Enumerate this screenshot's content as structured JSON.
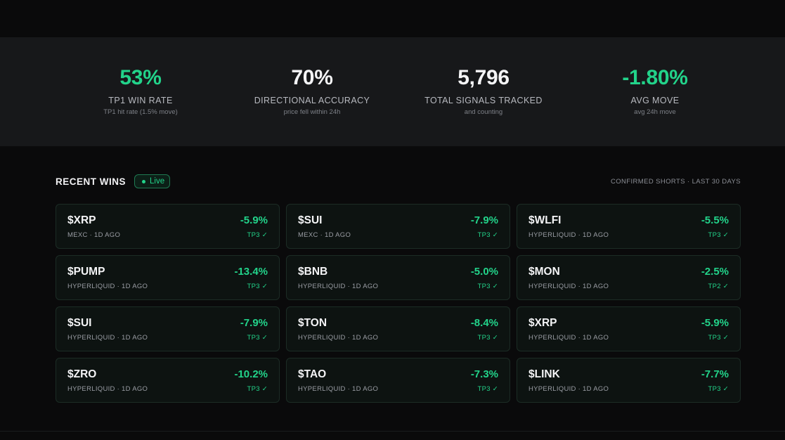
{
  "stats": [
    {
      "value": "53%",
      "label": "TP1 WIN RATE",
      "sub": "TP1 hit rate (1.5% move)",
      "color": "#22d38a"
    },
    {
      "value": "70%",
      "label": "DIRECTIONAL ACCURACY",
      "sub": "price fell within 24h",
      "color": "#f4f4f6"
    },
    {
      "value": "5,796",
      "label": "TOTAL SIGNALS TRACKED",
      "sub": "and counting",
      "color": "#f4f4f6"
    },
    {
      "value": "-1.80%",
      "label": "AVG MOVE",
      "sub": "avg 24h move",
      "color": "#22d38a"
    }
  ],
  "recent_wins": {
    "title": "RECENT WINS",
    "badge": "Live",
    "meta": "CONFIRMED SHORTS · LAST 30 DAYS",
    "cards": [
      {
        "symbol": "$XRP",
        "exchange": "MEXC · 1D AGO",
        "move": "-5.9%",
        "tp": "TP3 ✓"
      },
      {
        "symbol": "$SUI",
        "exchange": "MEXC · 1D AGO",
        "move": "-7.9%",
        "tp": "TP3 ✓"
      },
      {
        "symbol": "$WLFI",
        "exchange": "HYPERLIQUID · 1D AGO",
        "move": "-5.5%",
        "tp": "TP3 ✓"
      },
      {
        "symbol": "$PUMP",
        "exchange": "HYPERLIQUID · 1D AGO",
        "move": "-13.4%",
        "tp": "TP3 ✓"
      },
      {
        "symbol": "$BNB",
        "exchange": "HYPERLIQUID · 1D AGO",
        "move": "-5.0%",
        "tp": "TP3 ✓"
      },
      {
        "symbol": "$MON",
        "exchange": "HYPERLIQUID · 1D AGO",
        "move": "-2.5%",
        "tp": "TP2 ✓"
      },
      {
        "symbol": "$SUI",
        "exchange": "HYPERLIQUID · 1D AGO",
        "move": "-7.9%",
        "tp": "TP3 ✓"
      },
      {
        "symbol": "$TON",
        "exchange": "HYPERLIQUID · 1D AGO",
        "move": "-8.4%",
        "tp": "TP3 ✓"
      },
      {
        "symbol": "$XRP",
        "exchange": "HYPERLIQUID · 1D AGO",
        "move": "-5.9%",
        "tp": "TP3 ✓"
      },
      {
        "symbol": "$ZRO",
        "exchange": "HYPERLIQUID · 1D AGO",
        "move": "-10.2%",
        "tp": "TP3 ✓"
      },
      {
        "symbol": "$TAO",
        "exchange": "HYPERLIQUID · 1D AGO",
        "move": "-7.3%",
        "tp": "TP3 ✓"
      },
      {
        "symbol": "$LINK",
        "exchange": "HYPERLIQUID · 1D AGO",
        "move": "-7.7%",
        "tp": "TP3 ✓"
      }
    ]
  }
}
